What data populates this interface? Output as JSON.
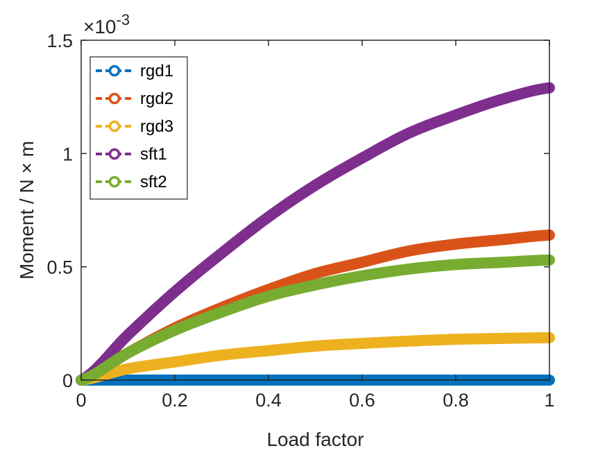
{
  "chart_data": {
    "type": "line",
    "title": "",
    "xlabel": "Load factor",
    "ylabel": "Moment / N × m",
    "exponent": {
      "base": "×10",
      "power": "-3"
    },
    "xlim": [
      0,
      1
    ],
    "ylim": [
      0,
      0.0015
    ],
    "xticks": [
      0,
      0.2,
      0.4,
      0.6,
      0.8,
      1
    ],
    "xtick_labels": [
      "0",
      "0.2",
      "0.4",
      "0.6",
      "0.8",
      "1"
    ],
    "yticks": [
      0,
      0.0005,
      0.001,
      0.0015
    ],
    "ytick_labels": [
      "0",
      "0.5",
      "1",
      "1.5"
    ],
    "grid": false,
    "legend_position": "top-left",
    "x": [
      0,
      0.1,
      0.2,
      0.3,
      0.4,
      0.5,
      0.6,
      0.7,
      0.8,
      0.9,
      1.0
    ],
    "series": [
      {
        "name": "rgd1",
        "color": "#0072BD",
        "values": [
          0,
          0,
          0,
          0,
          0,
          0,
          0,
          0,
          0,
          0,
          0
        ]
      },
      {
        "name": "rgd2",
        "color": "#D95319",
        "values": [
          0,
          0.00012,
          0.00023,
          0.00032,
          0.0004,
          0.00047,
          0.00052,
          0.00057,
          0.0006,
          0.00062,
          0.00064
        ]
      },
      {
        "name": "rgd3",
        "color": "#EDB120",
        "values": [
          0,
          5e-05,
          8e-05,
          0.00011,
          0.00013,
          0.00015,
          0.000162,
          0.000172,
          0.00018,
          0.000184,
          0.000187
        ]
      },
      {
        "name": "sft1",
        "color": "#7E2F8E",
        "values": [
          0,
          0.0002,
          0.00039,
          0.00056,
          0.00072,
          0.00086,
          0.00098,
          0.00109,
          0.00117,
          0.00124,
          0.00129
        ]
      },
      {
        "name": "sft2",
        "color": "#77AC30",
        "values": [
          0,
          0.00012,
          0.00022,
          0.0003,
          0.00037,
          0.00042,
          0.00046,
          0.00049,
          0.00051,
          0.00052,
          0.00053
        ]
      }
    ]
  }
}
